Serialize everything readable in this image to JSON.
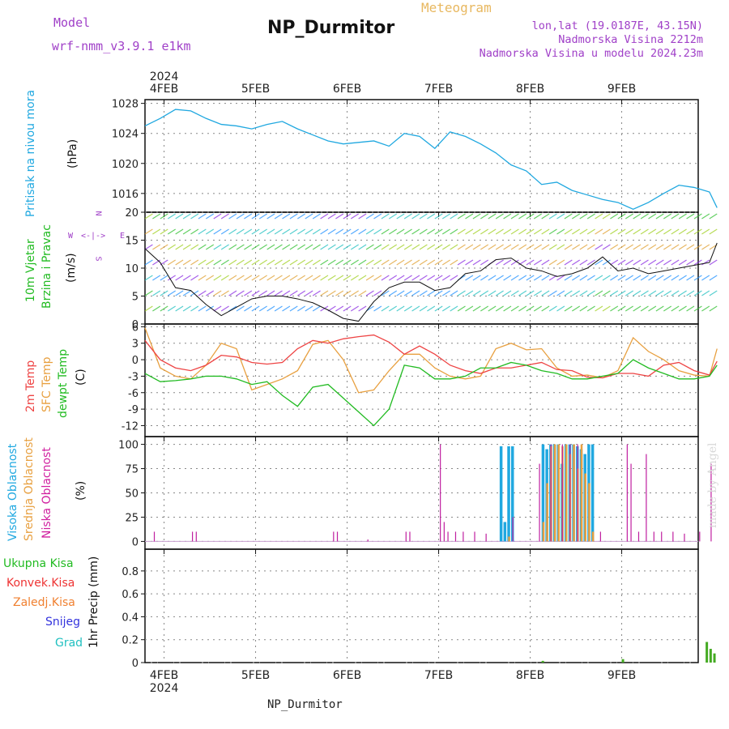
{
  "header": {
    "title": "NP_Durmitor",
    "meteogram_label": "Meteogram",
    "model_label": "Model",
    "model_value": "wrf-nmm_v3.9.1 e1km",
    "info_lines": [
      "lon,lat (19.0187E, 43.15N)",
      "Nadmorska Visina 2212m",
      "Nadmorska Visina u modelu 2024.23m"
    ]
  },
  "footer": {
    "station": "NP_Durmitor"
  },
  "watermark": "made by Angel",
  "time_axis": {
    "year_label": "2024",
    "day_labels": [
      "4FEB",
      "5FEB",
      "6FEB",
      "7FEB",
      "8FEB",
      "9FEB"
    ],
    "start_hour_before_4feb": 5,
    "total_hours": 150
  },
  "panels": {
    "pressure": {
      "label_lines": [
        "Pritisak na nivou mora",
        "(hPa)"
      ],
      "label_colors": [
        "#20a8e0",
        "#111111"
      ],
      "yticks": [
        1016,
        1020,
        1024,
        1028
      ],
      "ylim": [
        1013.5,
        1028.5
      ]
    },
    "wind": {
      "label_lines": [
        "10m Vjetar",
        "Brzina i Pravac",
        "(m/s)"
      ],
      "label_colors": [
        "#22bb22",
        "#22bb22",
        "#111111"
      ],
      "yticks": [
        0,
        5,
        10,
        15,
        20
      ],
      "ylim": [
        0,
        20
      ],
      "compass": {
        "n": "N",
        "s": "S",
        "w": "W",
        "e": "E"
      }
    },
    "temperature": {
      "label_lines": [
        "2m Temp",
        "SFC Temp",
        "dewpt Temp",
        "(C)"
      ],
      "label_colors": [
        "#ee4444",
        "#e8a040",
        "#22bb22",
        "#111111"
      ],
      "yticks": [
        -12,
        -9,
        -6,
        -3,
        0,
        3,
        6
      ],
      "ylim": [
        -14,
        6.5
      ]
    },
    "cloud": {
      "label_lines": [
        "Visoka Oblacnost",
        "Srednja Oblacnost",
        "Niska Oblacnost",
        "(%)"
      ],
      "label_colors": [
        "#20a8e0",
        "#e8a040",
        "#d020a0",
        "#111111"
      ],
      "yticks": [
        0,
        25,
        50,
        75,
        100
      ],
      "ylim": [
        -8,
        108
      ]
    },
    "precip": {
      "label": "1hr Precip (mm)",
      "legend": [
        "Ukupna Kisa",
        "Konvek.Kisa",
        "Zaledj.Kisa",
        "Snijeg",
        "Grad"
      ],
      "legend_colors": [
        "#22bb22",
        "#ee3333",
        "#f08030",
        "#3333dd",
        "#20c0c0"
      ],
      "yticks": [
        0,
        0.2,
        0.4,
        0.6,
        0.8
      ],
      "ylim": [
        0,
        0.99
      ]
    }
  },
  "colors": {
    "pressure_line": "#20a8e0",
    "temp_2m": "#ee4444",
    "temp_sfc": "#e8a040",
    "temp_dew": "#22bb22",
    "cloud_high": "#20a8e0",
    "cloud_mid": "#e8a040",
    "cloud_low": "#c020a0",
    "precip_total": "#44aa22",
    "precip_conv": "#ee3333",
    "grid": "#888888"
  },
  "chart_data": {
    "type": "line",
    "x_unit": "hours from 3FEB 19:00",
    "pressure": {
      "x": [
        0,
        4,
        8,
        12,
        16,
        20,
        24,
        28,
        32,
        36,
        40,
        44,
        48,
        52,
        56,
        60,
        64,
        68,
        72,
        76,
        80,
        84,
        88,
        92,
        96,
        100,
        104,
        108,
        112,
        116,
        120,
        124,
        128,
        132,
        136,
        140,
        144,
        148,
        150
      ],
      "values": [
        1025.0,
        1026.0,
        1027.2,
        1027.0,
        1026.0,
        1025.2,
        1025.0,
        1024.6,
        1025.2,
        1025.6,
        1024.6,
        1023.8,
        1023.0,
        1022.6,
        1022.8,
        1023.0,
        1022.3,
        1024.0,
        1023.6,
        1022.0,
        1024.2,
        1023.6,
        1022.6,
        1021.4,
        1019.8,
        1019.0,
        1017.2,
        1017.5,
        1016.4,
        1015.8,
        1015.2,
        1014.8,
        1013.9,
        1014.8,
        1016.0,
        1017.1,
        1016.8,
        1016.2,
        1014.1
      ]
    },
    "wind_speed": {
      "x": [
        0,
        4,
        8,
        12,
        16,
        20,
        24,
        28,
        32,
        36,
        40,
        44,
        48,
        52,
        56,
        60,
        64,
        68,
        72,
        76,
        80,
        84,
        88,
        92,
        96,
        100,
        104,
        108,
        112,
        116,
        120,
        124,
        128,
        132,
        136,
        140,
        144,
        148,
        150
      ],
      "values": [
        13.5,
        11.0,
        6.5,
        6.0,
        3.5,
        1.5,
        3.0,
        4.5,
        5.0,
        5.0,
        4.5,
        3.8,
        2.5,
        1.0,
        0.5,
        4.0,
        6.5,
        7.5,
        7.5,
        6.0,
        6.5,
        9.0,
        9.5,
        11.5,
        11.8,
        10.0,
        9.5,
        8.5,
        9.0,
        10.0,
        12.0,
        9.5,
        10.0,
        9.0,
        9.5,
        10.0,
        10.5,
        11.0,
        14.5
      ]
    },
    "temp_2m": {
      "x": [
        0,
        4,
        8,
        12,
        16,
        20,
        24,
        28,
        32,
        36,
        40,
        44,
        48,
        52,
        56,
        60,
        64,
        68,
        72,
        76,
        80,
        84,
        88,
        92,
        96,
        100,
        104,
        108,
        112,
        116,
        120,
        124,
        128,
        132,
        136,
        140,
        144,
        148,
        150
      ],
      "values": [
        3.5,
        0.0,
        -1.5,
        -2.0,
        -1.0,
        0.8,
        0.5,
        -0.5,
        -0.8,
        -0.5,
        2.0,
        3.5,
        3.0,
        3.8,
        4.2,
        4.5,
        3.2,
        1.0,
        2.5,
        1.0,
        -1.0,
        -2.0,
        -2.5,
        -1.5,
        -1.5,
        -1.0,
        -0.5,
        -1.8,
        -2.0,
        -3.2,
        -3.3,
        -2.5,
        -2.5,
        -3.0,
        -1.0,
        -0.5,
        -2.0,
        -2.8,
        -0.3
      ]
    },
    "temp_sfc": {
      "x": [
        0,
        4,
        8,
        12,
        16,
        20,
        24,
        28,
        32,
        36,
        40,
        44,
        48,
        52,
        56,
        60,
        64,
        68,
        72,
        76,
        80,
        84,
        88,
        92,
        96,
        100,
        104,
        108,
        112,
        116,
        120,
        124,
        128,
        132,
        136,
        140,
        144,
        148,
        150
      ],
      "values": [
        5.8,
        -1.5,
        -3.0,
        -3.5,
        -1.0,
        3.0,
        2.0,
        -5.5,
        -4.5,
        -3.5,
        -2.0,
        2.8,
        3.5,
        0.0,
        -6.0,
        -5.5,
        -2.0,
        1.0,
        1.0,
        -1.5,
        -3.0,
        -3.5,
        -3.0,
        2.0,
        3.0,
        1.8,
        2.0,
        -1.5,
        -3.0,
        -2.8,
        -3.3,
        -2.0,
        4.0,
        1.5,
        0.0,
        -2.0,
        -2.8,
        -3.0,
        2.0
      ]
    },
    "temp_dew": {
      "x": [
        0,
        4,
        8,
        12,
        16,
        20,
        24,
        28,
        32,
        36,
        40,
        44,
        48,
        52,
        56,
        60,
        64,
        68,
        72,
        76,
        80,
        84,
        88,
        92,
        96,
        100,
        104,
        108,
        112,
        116,
        120,
        124,
        128,
        132,
        136,
        140,
        144,
        148,
        150
      ],
      "values": [
        -2.5,
        -4.0,
        -3.8,
        -3.5,
        -3.0,
        -3.0,
        -3.5,
        -4.5,
        -4.0,
        -6.5,
        -8.5,
        -5.0,
        -4.5,
        -7.0,
        -9.5,
        -12.0,
        -9.0,
        -1.0,
        -1.5,
        -3.5,
        -3.5,
        -3.0,
        -1.5,
        -1.5,
        -0.5,
        -1.0,
        -2.0,
        -2.5,
        -3.5,
        -3.5,
        -3.0,
        -2.5,
        0.0,
        -1.5,
        -2.5,
        -3.5,
        -3.5,
        -3.0,
        -1.0
      ]
    },
    "cloud_high": {
      "x": [
        93,
        94,
        95,
        96,
        104,
        105,
        106,
        107,
        108,
        109,
        110,
        111,
        112,
        113,
        114,
        115,
        116,
        117
      ],
      "values": [
        98,
        20,
        98,
        98,
        100,
        95,
        100,
        100,
        100,
        80,
        100,
        100,
        100,
        98,
        95,
        90,
        100,
        100
      ]
    },
    "cloud_mid": {
      "x": [
        95,
        104,
        105,
        106,
        107,
        108,
        109,
        110,
        111,
        112,
        113,
        114,
        115,
        116,
        117
      ],
      "values": [
        5,
        20,
        60,
        98,
        100,
        100,
        98,
        100,
        90,
        100,
        75,
        100,
        70,
        60,
        10
      ]
    },
    "cloud_low": {
      "x": [
        2,
        12,
        13,
        49,
        50,
        58,
        68,
        69,
        77,
        78,
        79,
        81,
        83,
        86,
        89,
        96,
        103,
        106,
        109,
        111,
        113,
        119,
        126,
        127,
        129,
        131,
        133,
        135,
        138,
        141,
        145,
        148
      ],
      "values": [
        10,
        10,
        10,
        10,
        10,
        2,
        10,
        10,
        100,
        20,
        10,
        10,
        10,
        10,
        8,
        25,
        80,
        100,
        100,
        100,
        100,
        10,
        100,
        80,
        10,
        90,
        10,
        10,
        10,
        8,
        10,
        80
      ]
    },
    "precip_total": {
      "x": [
        104,
        125,
        147,
        148,
        149
      ],
      "values": [
        0.015,
        0.03,
        0.18,
        0.12,
        0.08
      ]
    }
  }
}
